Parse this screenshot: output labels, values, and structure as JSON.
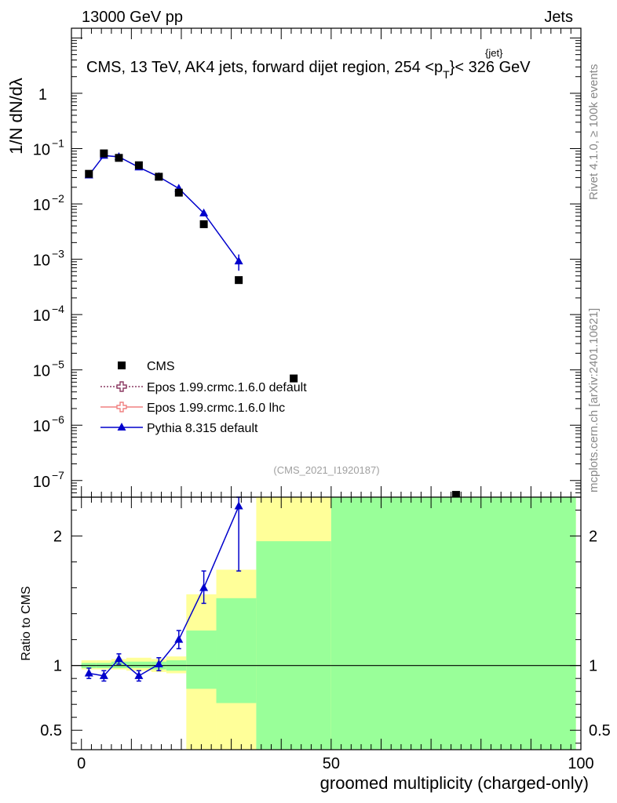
{
  "header": {
    "left": "13000 GeV pp",
    "right": "Jets"
  },
  "chart_data": [
    {
      "type": "scatter",
      "title": "CMS, 13 TeV, AK4 jets, forward dijet region, 254 <p",
      "title_sup": "{jet}",
      "title_sub": "T",
      "title_end": "}< 326 GeV",
      "ylabel": "1/N dN/dλ",
      "yscale": "log",
      "xlim": [
        -2,
        100
      ],
      "ylim": [
        5e-08,
        15
      ],
      "yticks": [
        {
          "v": 1e-07,
          "base": "10",
          "exp": "−7"
        },
        {
          "v": 1e-06,
          "base": "10",
          "exp": "−6"
        },
        {
          "v": 1e-05,
          "base": "10",
          "exp": "−5"
        },
        {
          "v": 0.0001,
          "base": "10",
          "exp": "−4"
        },
        {
          "v": 0.001,
          "base": "10",
          "exp": "−3"
        },
        {
          "v": 0.01,
          "base": "10",
          "exp": "−2"
        },
        {
          "v": 0.1,
          "base": "10",
          "exp": "−1"
        },
        {
          "v": 1,
          "base": "1",
          "exp": ""
        }
      ],
      "series": [
        {
          "name": "CMS",
          "marker": "square",
          "color": "#000000",
          "x": [
            1.5,
            4.5,
            7.5,
            11.5,
            15.5,
            19.5,
            24.5,
            31.5,
            42.5,
            75
          ],
          "y": [
            0.035,
            0.082,
            0.068,
            0.05,
            0.031,
            0.016,
            0.0043,
            0.00042,
            7e-06,
            5.5e-08
          ]
        },
        {
          "name": "Epos 1.99.crmc.1.6.0 default",
          "marker": "open-cross",
          "color": "#8b3a62",
          "x": [],
          "y": []
        },
        {
          "name": "Epos 1.99.crmc.1.6.0 lhc",
          "marker": "open-cross",
          "color": "#f08080",
          "x": [],
          "y": []
        },
        {
          "name": "Pythia 8.315 default",
          "marker": "triangle",
          "color": "#0000cc",
          "x": [
            1.5,
            4.5,
            7.5,
            11.5,
            15.5,
            19.5,
            24.5,
            31.5
          ],
          "y": [
            0.033,
            0.075,
            0.071,
            0.046,
            0.031,
            0.019,
            0.0068,
            0.00092
          ],
          "yerr_lo": [
            0.002,
            0.003,
            0.003,
            0.002,
            0.002,
            0.0015,
            0.0008,
            0.0003
          ],
          "yerr_hi": [
            0.002,
            0.003,
            0.003,
            0.002,
            0.002,
            0.0015,
            0.0008,
            0.0003
          ]
        }
      ],
      "watermark": "(CMS_2021_I1920187)"
    },
    {
      "type": "scatter",
      "ylabel": "Ratio to CMS",
      "xlabel": "groomed multiplicity (charged-only)",
      "xlim": [
        -2,
        100
      ],
      "ylim": [
        0.35,
        2.3
      ],
      "xticks": [
        0,
        50,
        100
      ],
      "yticks": [
        0.5,
        1,
        2
      ],
      "reference_line": 1,
      "bands": [
        {
          "x0": 0,
          "x1": 3,
          "y_lo": 0.97,
          "y_hi": 1.04,
          "inner_lo": 0.98,
          "inner_hi": 1.02
        },
        {
          "x0": 3,
          "x1": 6,
          "y_lo": 0.97,
          "y_hi": 1.04,
          "inner_lo": 0.98,
          "inner_hi": 1.02
        },
        {
          "x0": 6,
          "x1": 9,
          "y_lo": 0.97,
          "y_hi": 1.05,
          "inner_lo": 0.98,
          "inner_hi": 1.03
        },
        {
          "x0": 9,
          "x1": 14,
          "y_lo": 0.96,
          "y_hi": 1.06,
          "inner_lo": 0.98,
          "inner_hi": 1.03
        },
        {
          "x0": 14,
          "x1": 17,
          "y_lo": 0.95,
          "y_hi": 1.05,
          "inner_lo": 0.97,
          "inner_hi": 1.03
        },
        {
          "x0": 17,
          "x1": 21,
          "y_lo": 0.94,
          "y_hi": 1.07,
          "inner_lo": 0.96,
          "inner_hi": 1.04
        },
        {
          "x0": 21,
          "x1": 27,
          "y_lo": 0.0,
          "y_hi": 1.55,
          "inner_lo": 0.82,
          "inner_hi": 1.27
        },
        {
          "x0": 27,
          "x1": 35,
          "y_lo": 0.0,
          "y_hi": 1.74,
          "inner_lo": 0.71,
          "inner_hi": 1.52
        },
        {
          "x0": 35,
          "x1": 50,
          "y_lo": 0.0,
          "y_hi": 3.0,
          "inner_lo": 0.0,
          "inner_hi": 1.96
        },
        {
          "x0": 50,
          "x1": 99,
          "y_lo": 0.0,
          "y_hi": 3.0,
          "inner_lo": 0.0,
          "inner_hi": 3.0
        }
      ],
      "series": [
        {
          "name": "Pythia 8.315 default",
          "marker": "triangle",
          "color": "#0000cc",
          "x": [
            1.5,
            4.5,
            7.5,
            11.5,
            15.5,
            19.5,
            24.5,
            31.5
          ],
          "y": [
            0.94,
            0.92,
            1.05,
            0.92,
            1.01,
            1.2,
            1.6,
            2.23
          ],
          "yerr_lo": [
            0.04,
            0.04,
            0.04,
            0.04,
            0.05,
            0.07,
            0.12,
            0.5
          ],
          "yerr_hi": [
            0.04,
            0.04,
            0.04,
            0.04,
            0.05,
            0.07,
            0.13,
            0.5
          ]
        }
      ]
    }
  ],
  "side_labels": {
    "rivet": "Rivet 4.1.0, ≥ 100k events",
    "mcplots": "mcplots.cern.ch [arXiv:2401.10621]"
  },
  "colors": {
    "band_outer": "#ffff99",
    "band_inner": "#99ff99"
  }
}
